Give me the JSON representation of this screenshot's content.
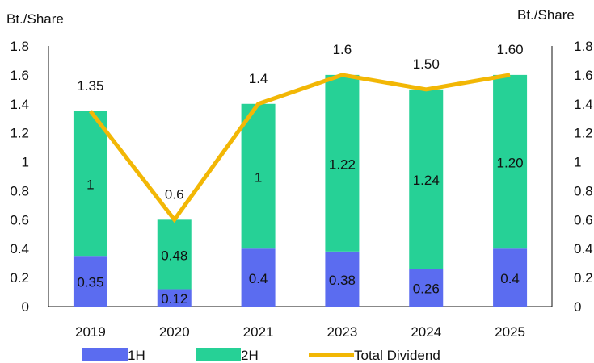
{
  "chart_data": {
    "type": "bar",
    "stacked": true,
    "categories": [
      "2019",
      "2020",
      "2021",
      "2023",
      "2024",
      "2025"
    ],
    "y_unit_left": "Bt./Share",
    "y_unit_right": "Bt./Share",
    "ylim": [
      0,
      1.8
    ],
    "yticks": [
      "0",
      "0.2",
      "0.4",
      "0.6",
      "0.8",
      "1",
      "1.2",
      "1.4",
      "1.6",
      "1.8"
    ],
    "series": [
      {
        "name": "1H",
        "kind": "bar",
        "color": "#5b6cf0",
        "values": [
          0.35,
          0.12,
          0.4,
          0.38,
          0.26,
          0.4
        ],
        "labels": [
          "0.35",
          "0.12",
          "0.4",
          "0.38",
          "0.26",
          "0.4"
        ]
      },
      {
        "name": "2H",
        "kind": "bar",
        "color": "#26d196",
        "values": [
          1,
          0.48,
          1,
          1.22,
          1.24,
          1.2
        ],
        "labels": [
          "1",
          "0.48",
          "1",
          "1.22",
          "1.24",
          "1.20"
        ]
      },
      {
        "name": "Total Dividend",
        "kind": "line",
        "color": "#f2b705",
        "values": [
          1.35,
          0.6,
          1.4,
          1.6,
          1.5,
          1.6
        ],
        "labels": [
          "1.35",
          "0.6",
          "1.4",
          "1.6",
          "1.50",
          "1.60"
        ]
      }
    ],
    "legend_position": "bottom",
    "grid": false
  }
}
